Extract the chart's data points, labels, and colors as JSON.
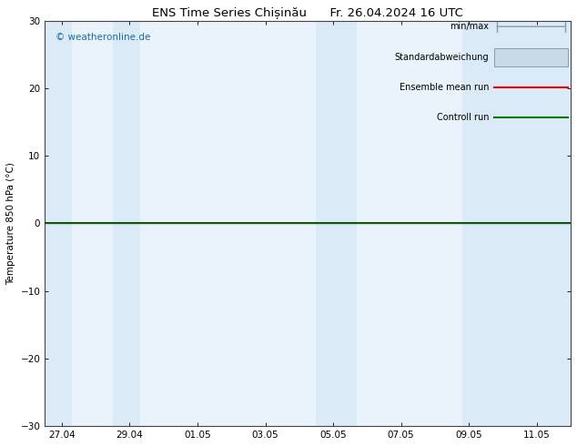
{
  "title": "ENS Time Series Chișinău      Fr. 26.04.2024 16 UTC",
  "ylabel": "Temperature 850 hPa (°C)",
  "ylim": [
    -30,
    30
  ],
  "yticks": [
    -30,
    -20,
    -10,
    0,
    10,
    20,
    30
  ],
  "x_labels": [
    "27.04",
    "29.04",
    "01.05",
    "03.05",
    "05.05",
    "07.05",
    "09.05",
    "11.05"
  ],
  "x_positions": [
    0,
    2,
    4,
    6,
    8,
    10,
    12,
    14
  ],
  "xlim": [
    -0.5,
    15.0
  ],
  "shaded_bands": [
    [
      -0.5,
      0.3
    ],
    [
      1.5,
      2.3
    ],
    [
      7.5,
      8.7
    ],
    [
      11.8,
      15.0
    ]
  ],
  "shade_color": "#dbeaf7",
  "background_color": "#ffffff",
  "plot_bg_color": "#eaf3fb",
  "watermark": "© weatheronline.de",
  "watermark_color": "#1a6aaa",
  "legend_items": [
    {
      "label": "min/max",
      "color": "#8899aa"
    },
    {
      "label": "Standardabweichung",
      "color": "#b8cfe0"
    },
    {
      "label": "Ensemble mean run",
      "color": "#ff0000"
    },
    {
      "label": "Controll run",
      "color": "#007700"
    }
  ],
  "zero_line_color": "#000000",
  "controll_run_color": "#007700",
  "tick_label_fontsize": 7.5,
  "ylabel_fontsize": 7.5,
  "title_fontsize": 9.5,
  "watermark_fontsize": 7.5,
  "legend_fontsize": 7.0
}
